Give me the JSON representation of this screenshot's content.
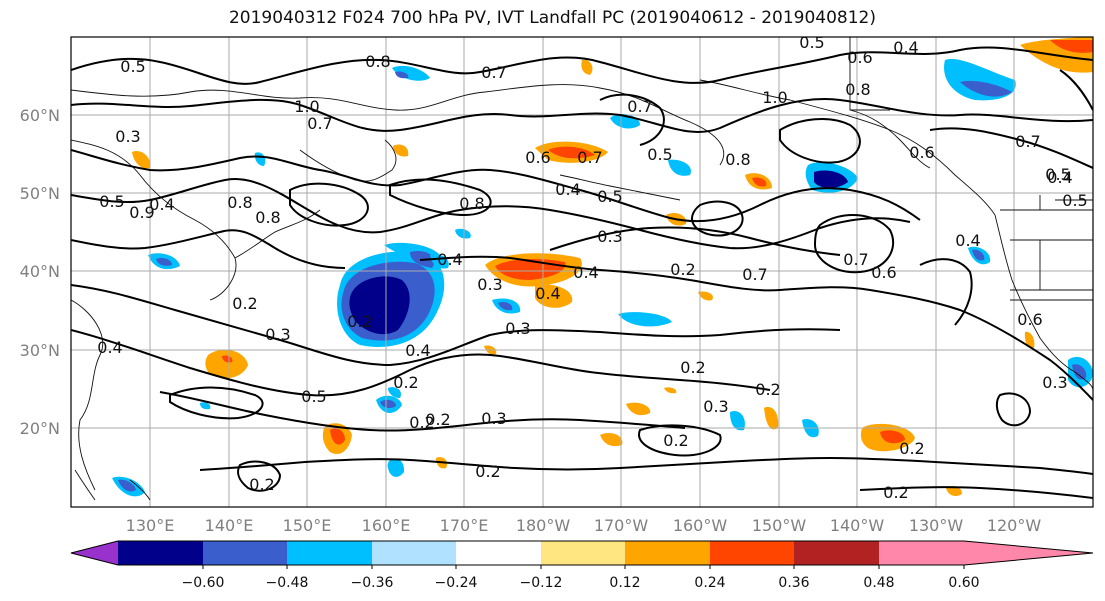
{
  "title": "2019040312 F024 700 hPa PV, IVT Landfall PC (2019040612 - 2019040812)",
  "latitude_labels": [
    "60°N",
    "50°N",
    "40°N",
    "30°N",
    "20°N"
  ],
  "longitude_labels": [
    "130°E",
    "140°E",
    "150°E",
    "160°E",
    "170°E",
    "180°W",
    "170°W",
    "160°W",
    "150°W",
    "140°W",
    "130°W",
    "120°W"
  ],
  "colorbar": {
    "ticks": [
      "−0.60",
      "−0.48",
      "−0.36",
      "−0.24",
      "−0.12",
      "0.12",
      "0.24",
      "0.36",
      "0.48",
      "0.60"
    ],
    "colors": [
      "#9932cc",
      "#00008b",
      "#3a5fcd",
      "#00bfff",
      "#b0e2ff",
      "#ffffff",
      "#ffe680",
      "#ffa500",
      "#ff4500",
      "#b22222",
      "#ff88aa"
    ]
  },
  "contour_labels": [
    "0.5",
    "0.8",
    "0.7",
    "0.5",
    "0.6",
    "0.4",
    "1.0",
    "0.7",
    "0.8",
    "0.3",
    "0.5",
    "0.4",
    "0.9",
    "0.8",
    "0.6",
    "0.7",
    "0.5",
    "0.7",
    "1.0",
    "0.8",
    "0.7",
    "0.6",
    "0.8",
    "0.4",
    "0.5",
    "0.4",
    "0.8",
    "0.5",
    "0.3",
    "0.4",
    "0.2",
    "0.3",
    "0.7",
    "0.7",
    "0.6",
    "0.4",
    "0.2",
    "0.2",
    "0.3",
    "0.4",
    "0.2",
    "0.3",
    "0.4",
    "0.5",
    "0.2",
    "0.2",
    "0.3",
    "0.2",
    "0.3",
    "0.2",
    "0.2",
    "0.2",
    "0.2",
    "0.2",
    "0.6",
    "0.3",
    "0.4",
    "0.5",
    "0.4",
    "0.2"
  ]
}
